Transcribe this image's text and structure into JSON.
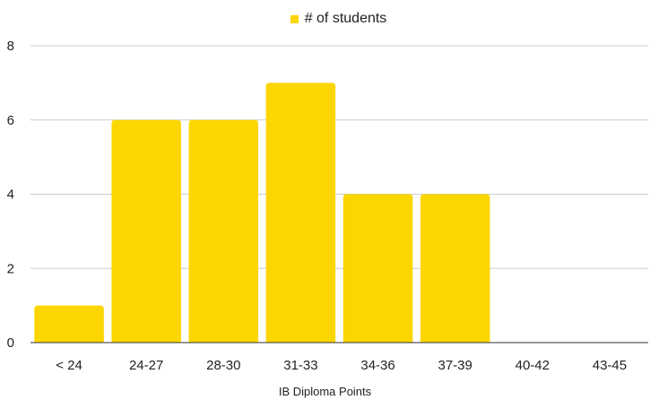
{
  "chart_data": {
    "type": "bar",
    "title": "",
    "xlabel": "IB Diploma Points",
    "ylabel": "",
    "categories": [
      "< 24",
      "24-27",
      "28-30",
      "31-33",
      "34-36",
      "37-39",
      "40-42",
      "43-45"
    ],
    "series": [
      {
        "name": "# of students",
        "values": [
          1,
          6,
          6,
          7,
          4,
          4,
          0,
          0
        ],
        "color": "#FCD600"
      }
    ],
    "ylim": [
      0,
      8
    ],
    "yticks": [
      0,
      2,
      4,
      6,
      8
    ],
    "grid": true,
    "legend": "top-center"
  }
}
